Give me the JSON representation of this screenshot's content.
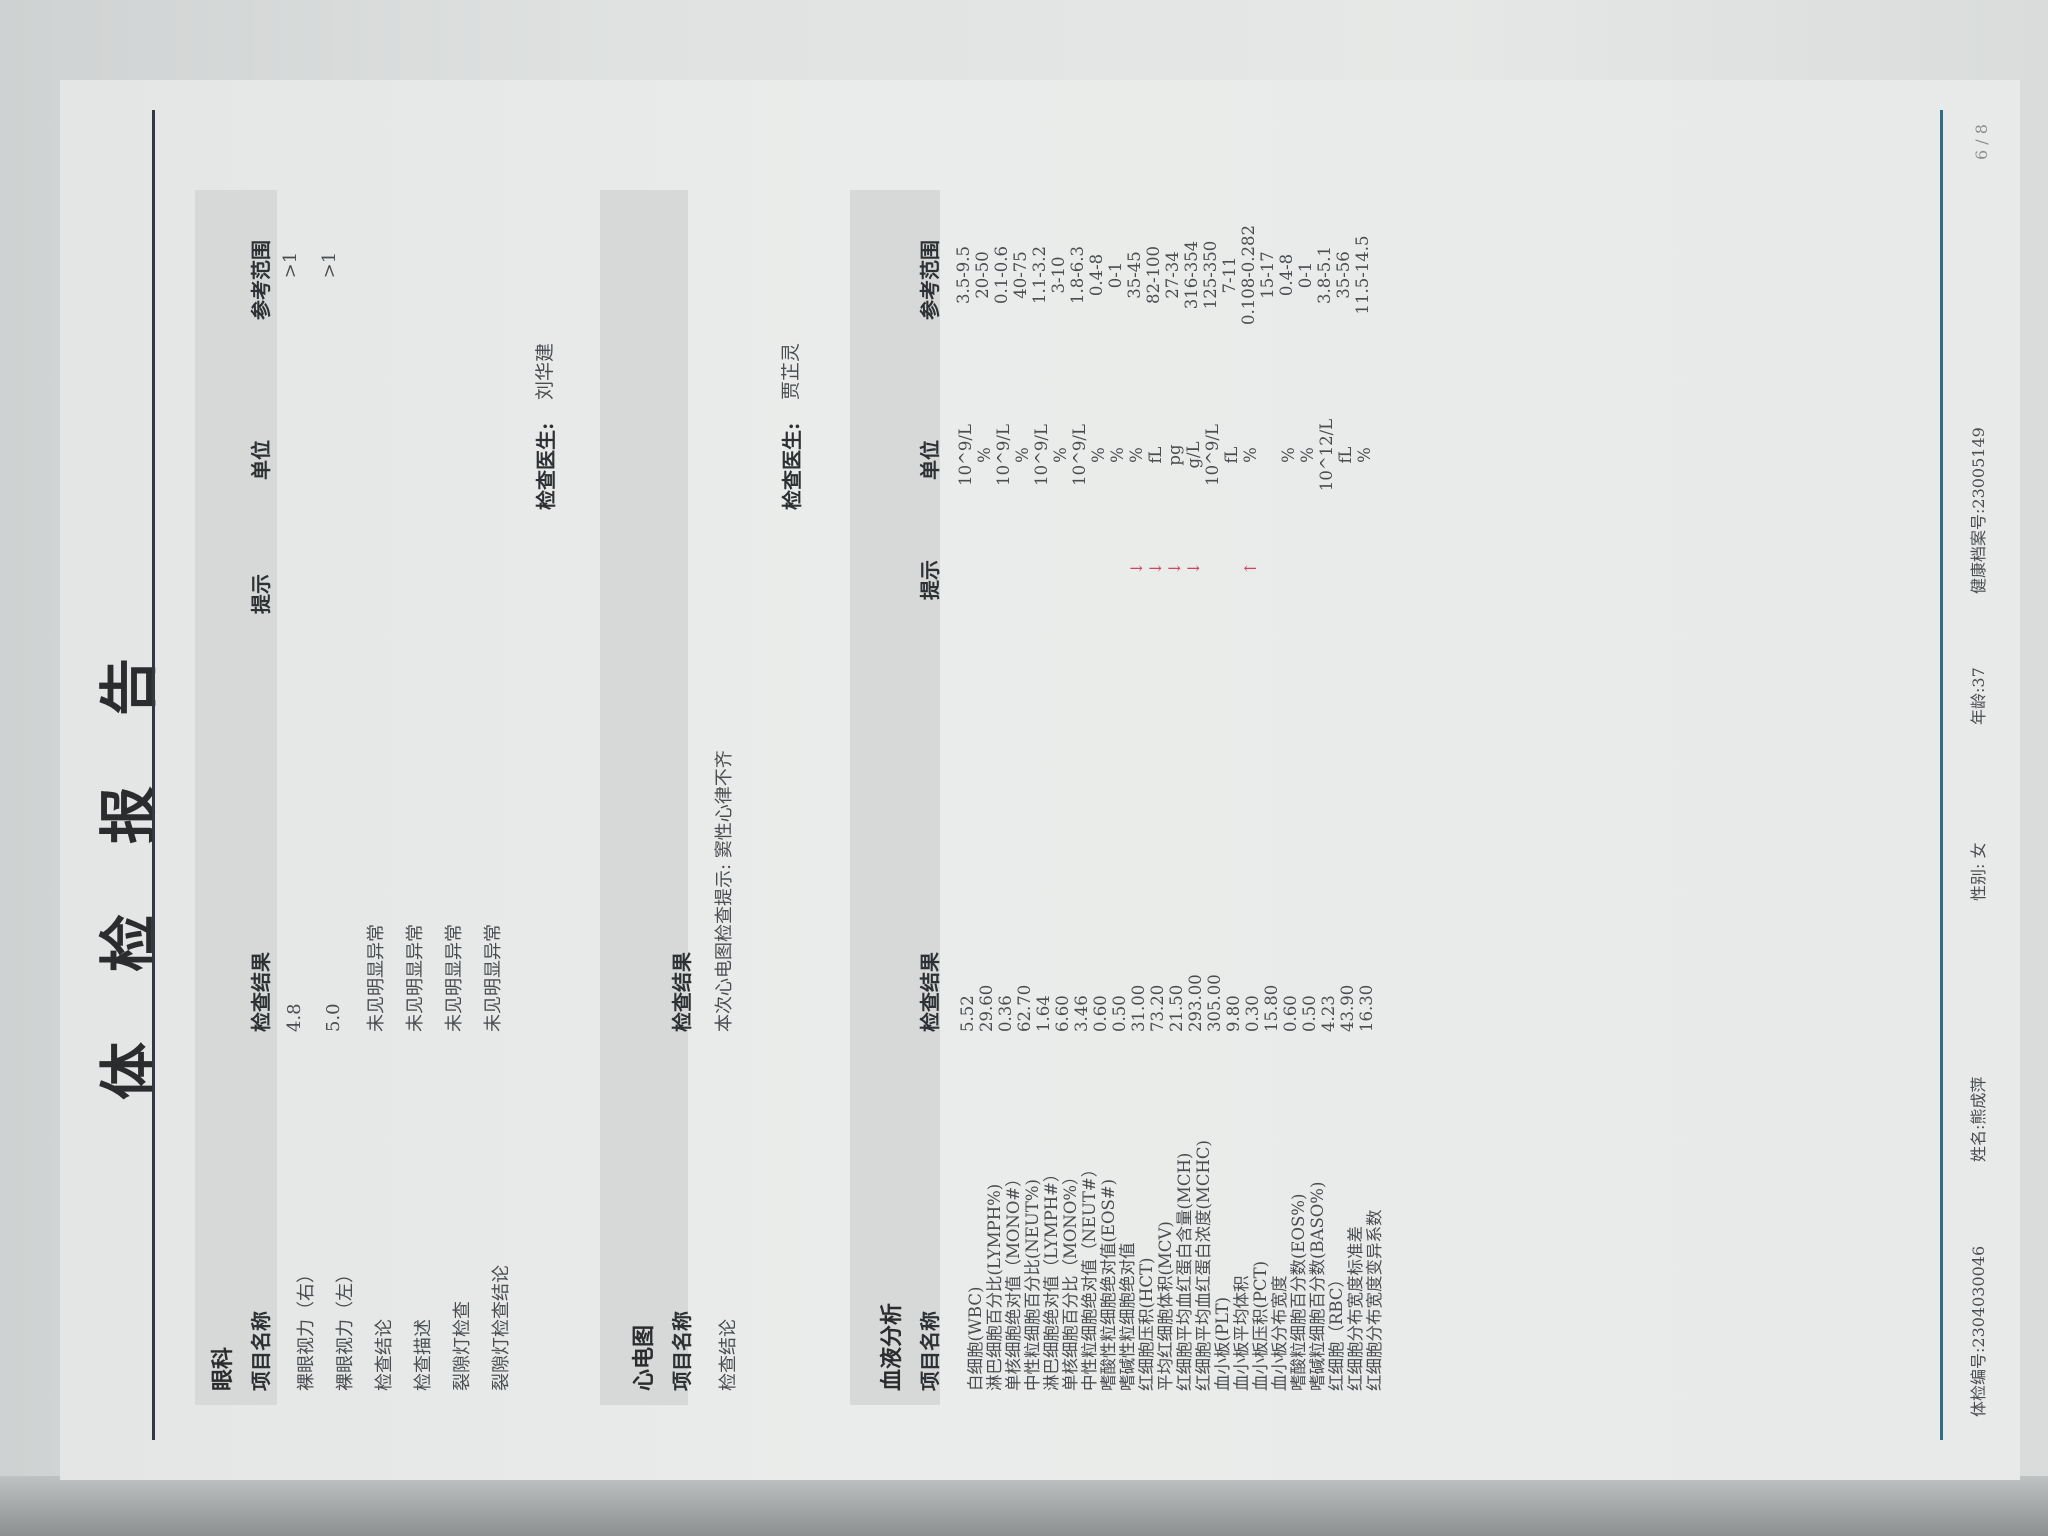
{
  "title": "体检报告",
  "eye": {
    "section": "眼科",
    "headers": {
      "name": "项目名称",
      "result": "检查结果",
      "hint": "提示",
      "unit": "单位",
      "range": "参考范围"
    },
    "rows": [
      {
        "name": "裸眼视力（右）",
        "result": "4.8",
        "hint": "",
        "unit": "",
        "range": ">1"
      },
      {
        "name": "裸眼视力（左）",
        "result": "5.0",
        "hint": "",
        "unit": "",
        "range": ">1"
      },
      {
        "name": "检查结论",
        "result": "未见明显异常",
        "hint": "",
        "unit": "",
        "range": ""
      },
      {
        "name": "检查描述",
        "result": "未见明显异常",
        "hint": "",
        "unit": "",
        "range": ""
      },
      {
        "name": "裂隙灯检查",
        "result": "未见明显异常",
        "hint": "",
        "unit": "",
        "range": ""
      },
      {
        "name": "裂隙灯检查结论",
        "result": "未见明显异常",
        "hint": "",
        "unit": "",
        "range": ""
      }
    ],
    "doctor_label": "检查医生:",
    "doctor": "刘华建"
  },
  "ecg": {
    "section": "心电图",
    "headers": {
      "name": "项目名称",
      "result": "检查结果"
    },
    "rows": [
      {
        "name": "检查结论",
        "result": "本次心电图检查提示: 窦性心律不齐"
      }
    ],
    "doctor_label": "检查医生:",
    "doctor": "贾芷灵"
  },
  "blood": {
    "section": "血液分析",
    "headers": {
      "name": "项目名称",
      "result": "检查结果",
      "hint": "提示",
      "unit": "单位",
      "range": "参考范围"
    },
    "rows": [
      {
        "name": "白细胞(WBC)",
        "result": "5.52",
        "hint": "",
        "unit": "10^9/L",
        "range": "3.5-9.5"
      },
      {
        "name": "淋巴细胞百分比(LYMPH%)",
        "result": "29.60",
        "hint": "",
        "unit": "%",
        "range": "20-50"
      },
      {
        "name": "单核细胞绝对值（MONO#）",
        "result": "0.36",
        "hint": "",
        "unit": "10^9/L",
        "range": "0.1-0.6"
      },
      {
        "name": "中性粒细胞百分比(NEUT%)",
        "result": "62.70",
        "hint": "",
        "unit": "%",
        "range": "40-75"
      },
      {
        "name": "淋巴细胞绝对值（LYMPH#）",
        "result": "1.64",
        "hint": "",
        "unit": "10^9/L",
        "range": "1.1-3.2"
      },
      {
        "name": "单核细胞百分比（MONO%）",
        "result": "6.60",
        "hint": "",
        "unit": "%",
        "range": "3-10"
      },
      {
        "name": "中性粒细胞绝对值（NEUT#）",
        "result": "3.46",
        "hint": "",
        "unit": "10^9/L",
        "range": "1.8-6.3"
      },
      {
        "name": "嗜酸性粒细胞绝对值(EOS#)",
        "result": "0.60",
        "hint": "",
        "unit": "%",
        "range": "0.4-8"
      },
      {
        "name": "嗜碱性粒细胞绝对值",
        "result": "0.50",
        "hint": "",
        "unit": "%",
        "range": "0-1"
      },
      {
        "name": "红细胞压积(HCT)",
        "result": "31.00",
        "hint": "↓",
        "unit": "%",
        "range": "35-45"
      },
      {
        "name": "平均红细胞体积(MCV)",
        "result": "73.20",
        "hint": "↓",
        "unit": "fL",
        "range": "82-100"
      },
      {
        "name": "红细胞平均血红蛋白含量(MCH)",
        "result": "21.50",
        "hint": "↓",
        "unit": "pg",
        "range": "27-34"
      },
      {
        "name": "红细胞平均血红蛋白浓度(MCHC)",
        "result": "293.00",
        "hint": "↓",
        "unit": "g/L",
        "range": "316-354"
      },
      {
        "name": "血小板(PLT)",
        "result": "305.00",
        "hint": "",
        "unit": "10^9/L",
        "range": "125-350"
      },
      {
        "name": "血小板平均体积",
        "result": "9.80",
        "hint": "",
        "unit": "fL",
        "range": "7-11"
      },
      {
        "name": "血小板压积(PCT)",
        "result": "0.30",
        "hint": "↑",
        "unit": "%",
        "range": "0.108-0.282"
      },
      {
        "name": "血小板分布宽度",
        "result": "15.80",
        "hint": "",
        "unit": "",
        "range": "15-17"
      },
      {
        "name": "嗜酸粒细胞百分数(EOS%)",
        "result": "0.60",
        "hint": "",
        "unit": "%",
        "range": "0.4-8"
      },
      {
        "name": "嗜碱粒细胞百分数(BASO%)",
        "result": "0.50",
        "hint": "",
        "unit": "%",
        "range": "0-1"
      },
      {
        "name": "红细胞（RBC）",
        "result": "4.23",
        "hint": "",
        "unit": "10^12/L",
        "range": "3.8-5.1"
      },
      {
        "name": "红细胞分布宽度标准差",
        "result": "43.90",
        "hint": "",
        "unit": "fL",
        "range": "35-56"
      },
      {
        "name": "红细胞分布宽度变异系数",
        "result": "16.30",
        "hint": "",
        "unit": "%",
        "range": "11.5-14.5"
      }
    ]
  },
  "footer": {
    "exam_no": "体检编号:2304030046",
    "name": "姓名:熊成萍",
    "sex": "性别: 女",
    "age": "年龄:37",
    "record_no": "健康档案号:23005149",
    "page": "6 / 8"
  },
  "colors": {
    "flag_arrow": "#d0455a",
    "footer_rule": "#2f6f86",
    "band": "#d6d9d8"
  }
}
